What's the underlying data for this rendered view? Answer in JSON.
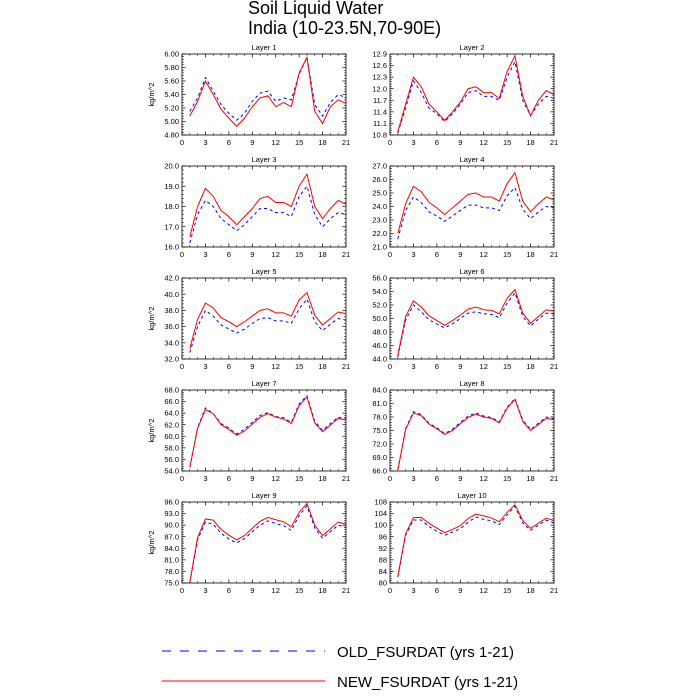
{
  "title": {
    "line1": "Soil Liquid Water",
    "line2": "India (10-23.5N,70-90E)"
  },
  "legend": {
    "old_label": "OLD_FSURDAT (yrs 1-21)",
    "new_label": "NEW_FSURDAT (yrs 1-21)",
    "old_color": "#0000ff",
    "new_color": "#ff0000",
    "old_style": "dashed",
    "new_style": "solid"
  },
  "chart_data": [
    {
      "type": "line",
      "title": "Layer 1",
      "ylabel": "kg/m^2",
      "xlim": [
        0,
        21
      ],
      "xticks": [
        0,
        3,
        6,
        9,
        12,
        15,
        18,
        21
      ],
      "ylim": [
        4.8,
        6.0
      ],
      "yticks": [
        "4.80",
        "5.00",
        "5.20",
        "5.40",
        "5.60",
        "5.80",
        "6.00"
      ],
      "x": [
        1,
        2,
        3,
        4,
        5,
        6,
        7,
        8,
        9,
        10,
        11,
        12,
        13,
        14,
        15,
        16,
        17,
        18,
        19,
        20,
        21
      ],
      "series": [
        {
          "name": "OLD_FSURDAT (yrs 1-21)",
          "values": [
            5.15,
            5.35,
            5.65,
            5.45,
            5.25,
            5.12,
            5.02,
            5.12,
            5.3,
            5.42,
            5.45,
            5.3,
            5.35,
            5.32,
            5.7,
            5.95,
            5.25,
            5.08,
            5.28,
            5.4,
            5.35
          ]
        },
        {
          "name": "NEW_FSURDAT (yrs 1-21)",
          "values": [
            5.08,
            5.3,
            5.6,
            5.4,
            5.18,
            5.05,
            4.93,
            5.05,
            5.22,
            5.35,
            5.38,
            5.22,
            5.28,
            5.22,
            5.72,
            5.95,
            5.15,
            4.97,
            5.22,
            5.32,
            5.27
          ]
        }
      ]
    },
    {
      "type": "line",
      "title": "Layer 2",
      "ylabel": "",
      "xlim": [
        0,
        21
      ],
      "xticks": [
        0,
        3,
        6,
        9,
        12,
        15,
        18,
        21
      ],
      "ylim": [
        10.8,
        12.9
      ],
      "yticks": [
        "10.8",
        "11.1",
        "11.4",
        "11.7",
        "12.0",
        "12.3",
        "12.6",
        "12.9"
      ],
      "x": [
        1,
        2,
        3,
        4,
        5,
        6,
        7,
        8,
        9,
        10,
        11,
        12,
        13,
        14,
        15,
        16,
        17,
        18,
        19,
        20,
        21
      ],
      "series": [
        {
          "name": "OLD_FSURDAT (yrs 1-21)",
          "values": [
            10.85,
            11.5,
            12.2,
            11.9,
            11.5,
            11.35,
            11.15,
            11.35,
            11.6,
            11.9,
            11.95,
            11.8,
            11.8,
            11.7,
            12.3,
            12.7,
            11.7,
            11.3,
            11.6,
            11.8,
            11.75
          ]
        },
        {
          "name": "NEW_FSURDAT (yrs 1-21)",
          "values": [
            10.88,
            11.6,
            12.3,
            12.05,
            11.6,
            11.4,
            11.18,
            11.4,
            11.65,
            12.0,
            12.05,
            11.9,
            11.9,
            11.75,
            12.45,
            12.85,
            11.8,
            11.3,
            11.7,
            11.95,
            11.85
          ]
        }
      ]
    },
    {
      "type": "line",
      "title": "Layer 3",
      "ylabel": "",
      "xlim": [
        0,
        21
      ],
      "xticks": [
        0,
        3,
        6,
        9,
        12,
        15,
        18,
        21
      ],
      "ylim": [
        16.0,
        20.0
      ],
      "yticks": [
        "16.0",
        "17.0",
        "18.0",
        "19.0",
        "20.0"
      ],
      "x": [
        1,
        2,
        3,
        4,
        5,
        6,
        7,
        8,
        9,
        10,
        11,
        12,
        13,
        14,
        15,
        16,
        17,
        18,
        19,
        20,
        21
      ],
      "series": [
        {
          "name": "OLD_FSURDAT (yrs 1-21)",
          "values": [
            16.2,
            17.6,
            18.3,
            18.0,
            17.4,
            17.1,
            16.8,
            17.1,
            17.5,
            17.9,
            17.9,
            17.7,
            17.7,
            17.5,
            18.5,
            19.0,
            17.6,
            17.0,
            17.4,
            17.7,
            17.6
          ]
        },
        {
          "name": "NEW_FSURDAT (yrs 1-21)",
          "values": [
            16.5,
            18.0,
            18.9,
            18.5,
            17.8,
            17.5,
            17.1,
            17.5,
            17.9,
            18.4,
            18.5,
            18.2,
            18.2,
            18.0,
            19.0,
            19.6,
            18.0,
            17.4,
            17.9,
            18.3,
            18.1
          ]
        }
      ]
    },
    {
      "type": "line",
      "title": "Layer 4",
      "ylabel": "",
      "xlim": [
        0,
        21
      ],
      "xticks": [
        0,
        3,
        6,
        9,
        12,
        15,
        18,
        21
      ],
      "ylim": [
        21.0,
        27.0
      ],
      "yticks": [
        "21.0",
        "22.0",
        "23.0",
        "24.0",
        "25.0",
        "26.0",
        "27.0"
      ],
      "x": [
        1,
        2,
        3,
        4,
        5,
        6,
        7,
        8,
        9,
        10,
        11,
        12,
        13,
        14,
        15,
        16,
        17,
        18,
        19,
        20,
        21
      ],
      "series": [
        {
          "name": "OLD_FSURDAT (yrs 1-21)",
          "values": [
            21.6,
            23.7,
            24.7,
            24.3,
            23.6,
            23.3,
            22.9,
            23.3,
            23.7,
            24.1,
            24.1,
            23.9,
            23.9,
            23.7,
            24.8,
            25.4,
            23.8,
            23.1,
            23.6,
            24.0,
            23.9
          ]
        },
        {
          "name": "NEW_FSURDAT (yrs 1-21)",
          "values": [
            22.0,
            24.2,
            25.5,
            25.1,
            24.3,
            23.9,
            23.4,
            23.9,
            24.4,
            24.9,
            25.0,
            24.7,
            24.7,
            24.4,
            25.7,
            26.5,
            24.4,
            23.6,
            24.2,
            24.7,
            24.5
          ]
        }
      ]
    },
    {
      "type": "line",
      "title": "Layer 5",
      "ylabel": "kg/m^2",
      "xlim": [
        0,
        21
      ],
      "xticks": [
        0,
        3,
        6,
        9,
        12,
        15,
        18,
        21
      ],
      "ylim": [
        32.0,
        42.0
      ],
      "yticks": [
        "32.0",
        "34.0",
        "36.0",
        "38.0",
        "40.0",
        "42.0"
      ],
      "x": [
        1,
        2,
        3,
        4,
        5,
        6,
        7,
        8,
        9,
        10,
        11,
        12,
        13,
        14,
        15,
        16,
        17,
        18,
        19,
        20,
        21
      ],
      "series": [
        {
          "name": "OLD_FSURDAT (yrs 1-21)",
          "values": [
            32.8,
            36.0,
            38.0,
            37.3,
            36.2,
            35.7,
            35.2,
            35.7,
            36.4,
            37.0,
            37.1,
            36.7,
            36.7,
            36.4,
            38.2,
            39.4,
            36.6,
            35.5,
            36.3,
            37.0,
            36.8
          ]
        },
        {
          "name": "NEW_FSURDAT (yrs 1-21)",
          "values": [
            33.3,
            36.9,
            38.9,
            38.3,
            37.1,
            36.6,
            36.0,
            36.6,
            37.3,
            38.0,
            38.2,
            37.7,
            37.7,
            37.3,
            39.3,
            40.2,
            37.4,
            36.2,
            37.0,
            37.8,
            37.6
          ]
        }
      ]
    },
    {
      "type": "line",
      "title": "Layer 6",
      "ylabel": "",
      "xlim": [
        0,
        21
      ],
      "xticks": [
        0,
        3,
        6,
        9,
        12,
        15,
        18,
        21
      ],
      "ylim": [
        44.0,
        56.0
      ],
      "yticks": [
        "44.0",
        "46.0",
        "48.0",
        "50.0",
        "52.0",
        "54.0",
        "56.0"
      ],
      "x": [
        1,
        2,
        3,
        4,
        5,
        6,
        7,
        8,
        9,
        10,
        11,
        12,
        13,
        14,
        15,
        16,
        17,
        18,
        19,
        20,
        21
      ],
      "series": [
        {
          "name": "OLD_FSURDAT (yrs 1-21)",
          "values": [
            44.3,
            49.8,
            52.0,
            51.0,
            49.8,
            49.2,
            48.6,
            49.2,
            50.0,
            50.8,
            51.0,
            50.7,
            50.6,
            50.1,
            52.3,
            53.8,
            50.3,
            48.9,
            49.9,
            50.8,
            50.7
          ]
        },
        {
          "name": "NEW_FSURDAT (yrs 1-21)",
          "values": [
            44.5,
            50.3,
            52.6,
            51.7,
            50.4,
            49.7,
            49.0,
            49.7,
            50.5,
            51.4,
            51.7,
            51.3,
            51.2,
            50.7,
            53.0,
            54.3,
            50.8,
            49.3,
            50.3,
            51.3,
            51.1
          ]
        }
      ]
    },
    {
      "type": "line",
      "title": "Layer 7",
      "ylabel": "kg/m^2",
      "xlim": [
        0,
        21
      ],
      "xticks": [
        0,
        3,
        6,
        9,
        12,
        15,
        18,
        21
      ],
      "ylim": [
        54.0,
        68.0
      ],
      "yticks": [
        "54.0",
        "56.0",
        "58.0",
        "60.0",
        "62.0",
        "64.0",
        "66.0",
        "68.0"
      ],
      "x": [
        1,
        2,
        3,
        4,
        5,
        6,
        7,
        8,
        9,
        10,
        11,
        12,
        13,
        14,
        15,
        16,
        17,
        18,
        19,
        20,
        21
      ],
      "series": [
        {
          "name": "OLD_FSURDAT (yrs 1-21)",
          "values": [
            54.6,
            61.5,
            64.9,
            63.9,
            62.2,
            61.4,
            60.4,
            61.2,
            62.4,
            63.6,
            64.1,
            63.4,
            63.2,
            62.4,
            65.6,
            67.0,
            62.6,
            61.0,
            62.2,
            63.3,
            63.0
          ]
        },
        {
          "name": "NEW_FSURDAT (yrs 1-21)",
          "values": [
            54.6,
            61.4,
            64.6,
            63.9,
            62.0,
            61.2,
            60.2,
            60.9,
            62.1,
            63.3,
            63.9,
            63.3,
            63.0,
            62.2,
            65.3,
            66.8,
            62.3,
            60.8,
            61.9,
            63.1,
            62.8
          ]
        }
      ]
    },
    {
      "type": "line",
      "title": "Layer 8",
      "ylabel": "",
      "xlim": [
        0,
        21
      ],
      "xticks": [
        0,
        3,
        6,
        9,
        12,
        15,
        18,
        21
      ],
      "ylim": [
        66.0,
        84.0
      ],
      "yticks": [
        "66.0",
        "69.0",
        "72.0",
        "75.0",
        "78.0",
        "81.0",
        "84.0"
      ],
      "x": [
        1,
        2,
        3,
        4,
        5,
        6,
        7,
        8,
        9,
        10,
        11,
        12,
        13,
        14,
        15,
        16,
        17,
        18,
        19,
        20,
        21
      ],
      "series": [
        {
          "name": "OLD_FSURDAT (yrs 1-21)",
          "values": [
            66.2,
            75.4,
            79.2,
            78.5,
            76.6,
            75.6,
            74.3,
            75.3,
            76.8,
            78.2,
            78.9,
            78.2,
            77.9,
            76.9,
            80.2,
            82.1,
            77.3,
            75.2,
            76.6,
            78.0,
            77.6
          ]
        },
        {
          "name": "NEW_FSURDAT (yrs 1-21)",
          "values": [
            66.2,
            75.2,
            78.9,
            78.3,
            76.4,
            75.4,
            74.1,
            75.0,
            76.5,
            77.9,
            78.6,
            78.0,
            77.7,
            76.7,
            80.0,
            81.9,
            77.0,
            75.0,
            76.3,
            77.7,
            77.4
          ]
        }
      ]
    },
    {
      "type": "line",
      "title": "Layer 9",
      "ylabel": "kg/m^2",
      "xlim": [
        0,
        21
      ],
      "xticks": [
        0,
        3,
        6,
        9,
        12,
        15,
        18,
        21
      ],
      "ylim": [
        75.0,
        96.0
      ],
      "yticks": [
        "75.0",
        "78.0",
        "81.0",
        "84.0",
        "87.0",
        "90.0",
        "93.0",
        "96.0"
      ],
      "x": [
        1,
        2,
        3,
        4,
        5,
        6,
        7,
        8,
        9,
        10,
        11,
        12,
        13,
        14,
        15,
        16,
        17,
        18,
        19,
        20,
        21
      ],
      "series": [
        {
          "name": "OLD_FSURDAT (yrs 1-21)",
          "values": [
            75.1,
            86.2,
            90.8,
            90.2,
            87.9,
            86.4,
            85.4,
            86.5,
            88.3,
            90.0,
            91.1,
            90.4,
            89.9,
            88.6,
            92.5,
            95.0,
            89.3,
            86.6,
            88.3,
            90.0,
            89.4
          ]
        },
        {
          "name": "NEW_FSURDAT (yrs 1-21)",
          "values": [
            75.2,
            86.8,
            91.6,
            91.3,
            88.9,
            87.4,
            86.2,
            87.3,
            89.2,
            91.0,
            92.0,
            91.4,
            90.9,
            89.6,
            93.3,
            95.6,
            90.0,
            87.3,
            89.0,
            90.8,
            90.2
          ]
        }
      ]
    },
    {
      "type": "line",
      "title": "Layer 10",
      "ylabel": "",
      "xlim": [
        0,
        21
      ],
      "xticks": [
        0,
        3,
        6,
        9,
        12,
        15,
        18,
        21
      ],
      "ylim": [
        80,
        108
      ],
      "yticks": [
        "80",
        "84",
        "88",
        "92",
        "96",
        "100",
        "104",
        "108"
      ],
      "x": [
        1,
        2,
        3,
        4,
        5,
        6,
        7,
        8,
        9,
        10,
        11,
        12,
        13,
        14,
        15,
        16,
        17,
        18,
        19,
        20,
        21
      ],
      "series": [
        {
          "name": "OLD_FSURDAT (yrs 1-21)",
          "values": [
            82.0,
            96.5,
            101.8,
            101.8,
            99.5,
            97.9,
            96.5,
            97.6,
            98.8,
            101.0,
            102.8,
            102.0,
            101.5,
            100.2,
            103.5,
            106.5,
            100.8,
            98.2,
            100.0,
            101.7,
            100.8
          ]
        },
        {
          "name": "NEW_FSURDAT (yrs 1-21)",
          "values": [
            82.3,
            97.0,
            102.6,
            102.7,
            100.6,
            99.0,
            97.4,
            98.5,
            99.8,
            102.3,
            103.8,
            103.2,
            102.5,
            101.2,
            104.4,
            107.0,
            101.6,
            98.9,
            100.7,
            102.4,
            101.6
          ]
        }
      ]
    }
  ]
}
